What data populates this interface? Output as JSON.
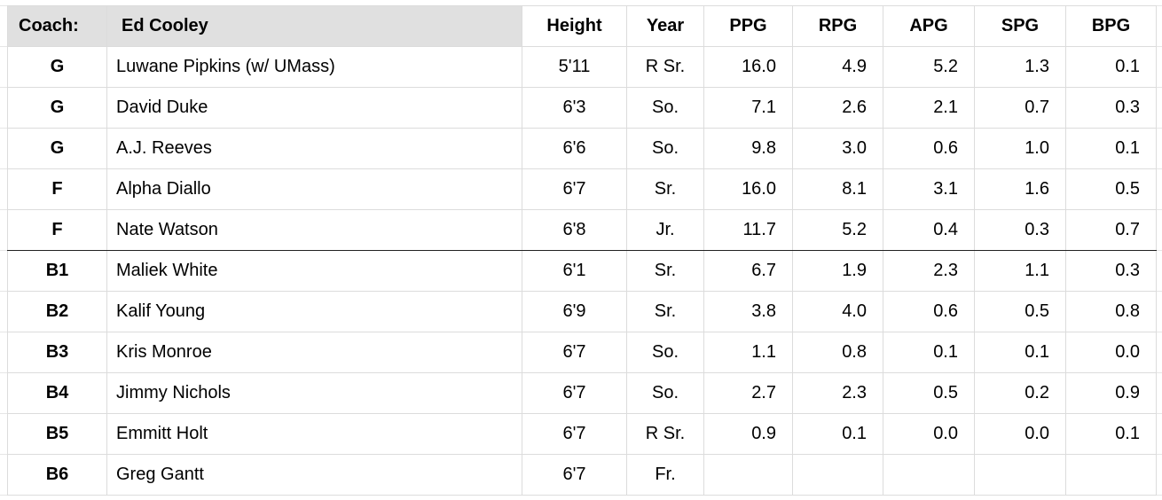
{
  "table": {
    "header": [
      "Coach:",
      "Ed Cooley",
      "Height",
      "Year",
      "PPG",
      "RPG",
      "APG",
      "SPG",
      "BPG"
    ],
    "rows": [
      [
        "G",
        "Luwane Pipkins (w/ UMass)",
        "5'11",
        "R Sr.",
        "16.0",
        "4.9",
        "5.2",
        "1.3",
        "0.1"
      ],
      [
        "G",
        "David Duke",
        "6'3",
        "So.",
        "7.1",
        "2.6",
        "2.1",
        "0.7",
        "0.3"
      ],
      [
        "G",
        "A.J. Reeves",
        "6'6",
        "So.",
        "9.8",
        "3.0",
        "0.6",
        "1.0",
        "0.1"
      ],
      [
        "F",
        "Alpha Diallo",
        "6'7",
        "Sr.",
        "16.0",
        "8.1",
        "3.1",
        "1.6",
        "0.5"
      ],
      [
        "F",
        "Nate Watson",
        "6'8",
        "Jr.",
        "11.7",
        "5.2",
        "0.4",
        "0.3",
        "0.7"
      ],
      [
        "B1",
        "Maliek White",
        "6'1",
        "Sr.",
        "6.7",
        "1.9",
        "2.3",
        "1.1",
        "0.3"
      ],
      [
        "B2",
        "Kalif Young",
        "6'9",
        "Sr.",
        "3.8",
        "4.0",
        "0.6",
        "0.5",
        "0.8"
      ],
      [
        "B3",
        "Kris Monroe",
        "6'7",
        "So.",
        "1.1",
        "0.8",
        "0.1",
        "0.1",
        "0.0"
      ],
      [
        "B4",
        "Jimmy Nichols",
        "6'7",
        "So.",
        "2.7",
        "2.3",
        "0.5",
        "0.2",
        "0.9"
      ],
      [
        "B5",
        "Emmitt Holt",
        "6'7",
        "R Sr.",
        "0.9",
        "0.1",
        "0.0",
        "0.0",
        "0.1"
      ],
      [
        "B6",
        "Greg Gantt",
        "6'7",
        "Fr."
      ]
    ]
  }
}
